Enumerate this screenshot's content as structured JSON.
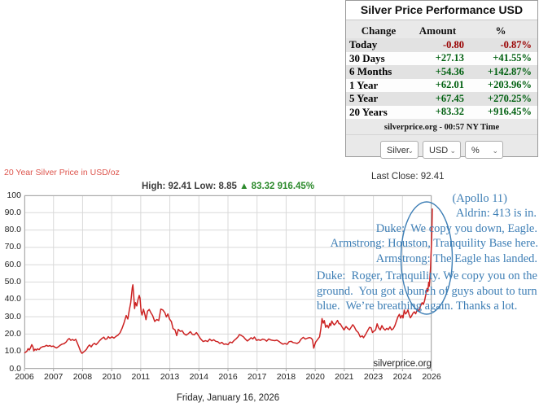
{
  "panel": {
    "title": "Silver Price Performance USD",
    "columns": [
      "Change",
      "Amount",
      "%"
    ],
    "rows": [
      {
        "label": "Today",
        "amount": "-0.80",
        "pct": "-0.87%",
        "negative": true
      },
      {
        "label": "30 Days",
        "amount": "+27.13",
        "pct": "+41.55%",
        "negative": false
      },
      {
        "label": "6 Months",
        "amount": "+54.36",
        "pct": "+142.87%",
        "negative": false
      },
      {
        "label": "1 Year",
        "amount": "+62.01",
        "pct": "+203.96%",
        "negative": false
      },
      {
        "label": "5 Year",
        "amount": "+67.45",
        "pct": "+270.25%",
        "negative": false
      },
      {
        "label": "20 Years",
        "amount": "+83.32",
        "pct": "+916.45%",
        "negative": false
      }
    ],
    "footer": "silverprice.org - 00:57 NY Time",
    "selects": [
      {
        "value": "Silver"
      },
      {
        "value": "USD"
      },
      {
        "value": "%"
      }
    ]
  },
  "chart_header": {
    "title": "20 Year Silver Price in USD/oz",
    "last_close": "Last Close: 92.41",
    "high_low": "High: 92.41 Low: 8.85 ",
    "change": "▲ 83.32 916.45%"
  },
  "annotation": {
    "lines": [
      "(Apollo 11)",
      "Aldrin: 413 is in.",
      "Duke:  We copy you down, Eagle.",
      "Armstrong: Houston, Tranquility Base here.",
      "Armstrong: The Eagle has landed.",
      "Duke:  Roger, Tranquility. We copy you on the",
      "ground.  You got a bunch of guys about to turn",
      "blue.  We’re breathing again. Thanks a lot."
    ]
  },
  "watermark": "silverprice.org",
  "footer_date": "Friday, January 16, 2026",
  "colors": {
    "positive": "#006010",
    "negative": "#990000",
    "line": "#cc2222",
    "annotation": "#3d7eb5",
    "title_red": "#dd544c",
    "change_green": "#2c8a2c",
    "grid": "#d9d9d9",
    "plot_border": "#ababab"
  },
  "chart_data": {
    "type": "line",
    "title": "20 Year Silver Price in USD/oz",
    "xlabel": "",
    "ylabel": "USD/oz",
    "grid": true,
    "x_axis_years": [
      2006,
      2026
    ],
    "ylim": [
      0,
      100
    ],
    "high": 92.41,
    "low": 8.85,
    "last_close": 92.41,
    "x_tick_labels": [
      "2006",
      "2007",
      "2008",
      "2010",
      "2011",
      "2013",
      "2014",
      "2016",
      "2017",
      "2018",
      "2020",
      "2021",
      "2023",
      "2024",
      "2026"
    ],
    "y_tick_labels": [
      "100",
      "90.0",
      "80.0",
      "70.0",
      "60.0",
      "50.0",
      "40.0",
      "30.0",
      "20.0",
      "10.0",
      "0.0"
    ],
    "series": [
      {
        "name": "Silver price USD/oz",
        "points": [
          [
            2006.0,
            9.1
          ],
          [
            2006.06,
            9.6
          ],
          [
            2006.12,
            10.1
          ],
          [
            2006.18,
            11.6
          ],
          [
            2006.24,
            10.8
          ],
          [
            2006.3,
            12.1
          ],
          [
            2006.36,
            13.9
          ],
          [
            2006.42,
            12.6
          ],
          [
            2006.46,
            10.3
          ],
          [
            2006.52,
            11.3
          ],
          [
            2006.58,
            10.7
          ],
          [
            2006.64,
            11.5
          ],
          [
            2006.72,
            11.0
          ],
          [
            2006.8,
            12.2
          ],
          [
            2006.9,
            12.7
          ],
          [
            2007.0,
            12.9
          ],
          [
            2007.08,
            13.5
          ],
          [
            2007.16,
            13.0
          ],
          [
            2007.25,
            13.4
          ],
          [
            2007.33,
            12.8
          ],
          [
            2007.42,
            13.1
          ],
          [
            2007.5,
            12.4
          ],
          [
            2007.58,
            12.0
          ],
          [
            2007.67,
            12.7
          ],
          [
            2007.75,
            13.5
          ],
          [
            2007.85,
            14.2
          ],
          [
            2007.95,
            14.5
          ],
          [
            2008.05,
            15.4
          ],
          [
            2008.13,
            16.8
          ],
          [
            2008.2,
            17.4
          ],
          [
            2008.28,
            16.4
          ],
          [
            2008.36,
            16.9
          ],
          [
            2008.44,
            16.3
          ],
          [
            2008.52,
            17.0
          ],
          [
            2008.6,
            14.8
          ],
          [
            2008.68,
            12.5
          ],
          [
            2008.76,
            10.0
          ],
          [
            2008.83,
            8.85
          ],
          [
            2008.9,
            9.6
          ],
          [
            2008.97,
            10.3
          ],
          [
            2009.05,
            11.2
          ],
          [
            2009.13,
            12.9
          ],
          [
            2009.2,
            13.7
          ],
          [
            2009.28,
            12.6
          ],
          [
            2009.36,
            14.0
          ],
          [
            2009.44,
            14.7
          ],
          [
            2009.52,
            13.9
          ],
          [
            2009.6,
            14.9
          ],
          [
            2009.7,
            16.3
          ],
          [
            2009.8,
            17.4
          ],
          [
            2009.9,
            18.2
          ],
          [
            2009.97,
            17.0
          ],
          [
            2010.05,
            17.2
          ],
          [
            2010.12,
            18.5
          ],
          [
            2010.2,
            17.6
          ],
          [
            2010.3,
            18.4
          ],
          [
            2010.4,
            17.7
          ],
          [
            2010.5,
            18.7
          ],
          [
            2010.6,
            19.4
          ],
          [
            2010.7,
            20.8
          ],
          [
            2010.8,
            23.4
          ],
          [
            2010.9,
            26.7
          ],
          [
            2011.0,
            30.7
          ],
          [
            2011.08,
            28.7
          ],
          [
            2011.15,
            33.8
          ],
          [
            2011.22,
            37.9
          ],
          [
            2011.3,
            46.9
          ],
          [
            2011.33,
            48.4
          ],
          [
            2011.37,
            42.6
          ],
          [
            2011.41,
            34.7
          ],
          [
            2011.46,
            38.1
          ],
          [
            2011.52,
            36.2
          ],
          [
            2011.58,
            39.8
          ],
          [
            2011.64,
            42.3
          ],
          [
            2011.68,
            40.6
          ],
          [
            2011.73,
            33.1
          ],
          [
            2011.78,
            31.0
          ],
          [
            2011.85,
            34.3
          ],
          [
            2011.9,
            32.2
          ],
          [
            2011.97,
            28.3
          ],
          [
            2012.05,
            33.2
          ],
          [
            2012.13,
            34.2
          ],
          [
            2012.2,
            32.6
          ],
          [
            2012.3,
            30.6
          ],
          [
            2012.4,
            27.3
          ],
          [
            2012.5,
            28.4
          ],
          [
            2012.6,
            27.8
          ],
          [
            2012.7,
            34.4
          ],
          [
            2012.8,
            33.9
          ],
          [
            2012.9,
            32.3
          ],
          [
            2012.97,
            29.9
          ],
          [
            2013.05,
            31.6
          ],
          [
            2013.13,
            28.6
          ],
          [
            2013.22,
            27.2
          ],
          [
            2013.3,
            23.2
          ],
          [
            2013.4,
            22.4
          ],
          [
            2013.48,
            19.1
          ],
          [
            2013.56,
            22.7
          ],
          [
            2013.65,
            21.6
          ],
          [
            2013.75,
            21.9
          ],
          [
            2013.85,
            20.1
          ],
          [
            2013.95,
            19.4
          ],
          [
            2014.05,
            20.2
          ],
          [
            2014.15,
            21.4
          ],
          [
            2014.25,
            19.8
          ],
          [
            2014.35,
            19.6
          ],
          [
            2014.45,
            20.9
          ],
          [
            2014.55,
            19.2
          ],
          [
            2014.65,
            17.3
          ],
          [
            2014.78,
            15.7
          ],
          [
            2014.9,
            16.2
          ],
          [
            2015.0,
            15.7
          ],
          [
            2015.1,
            17.1
          ],
          [
            2015.2,
            16.1
          ],
          [
            2015.3,
            16.7
          ],
          [
            2015.4,
            15.8
          ],
          [
            2015.5,
            15.6
          ],
          [
            2015.6,
            14.6
          ],
          [
            2015.7,
            15.2
          ],
          [
            2015.8,
            14.1
          ],
          [
            2015.9,
            14.3
          ],
          [
            2016.0,
            13.9
          ],
          [
            2016.1,
            15.4
          ],
          [
            2016.2,
            15.0
          ],
          [
            2016.3,
            16.3
          ],
          [
            2016.4,
            17.3
          ],
          [
            2016.5,
            18.5
          ],
          [
            2016.56,
            19.7
          ],
          [
            2016.65,
            19.2
          ],
          [
            2016.75,
            18.5
          ],
          [
            2016.85,
            17.2
          ],
          [
            2016.95,
            16.0
          ],
          [
            2017.05,
            16.9
          ],
          [
            2017.13,
            17.9
          ],
          [
            2017.22,
            17.2
          ],
          [
            2017.3,
            18.3
          ],
          [
            2017.4,
            16.4
          ],
          [
            2017.5,
            16.7
          ],
          [
            2017.6,
            16.4
          ],
          [
            2017.7,
            17.1
          ],
          [
            2017.8,
            16.8
          ],
          [
            2017.9,
            15.9
          ],
          [
            2018.0,
            17.2
          ],
          [
            2018.1,
            16.6
          ],
          [
            2018.2,
            16.4
          ],
          [
            2018.3,
            16.2
          ],
          [
            2018.4,
            16.5
          ],
          [
            2018.5,
            15.8
          ],
          [
            2018.6,
            14.9
          ],
          [
            2018.7,
            14.2
          ],
          [
            2018.8,
            14.6
          ],
          [
            2018.9,
            14.1
          ],
          [
            2019.0,
            15.6
          ],
          [
            2019.1,
            15.8
          ],
          [
            2019.2,
            15.1
          ],
          [
            2019.3,
            14.9
          ],
          [
            2019.4,
            14.6
          ],
          [
            2019.5,
            15.4
          ],
          [
            2019.6,
            17.2
          ],
          [
            2019.7,
            18.1
          ],
          [
            2019.8,
            17.1
          ],
          [
            2019.9,
            17.6
          ],
          [
            2020.0,
            18.0
          ],
          [
            2020.08,
            17.7
          ],
          [
            2020.15,
            16.7
          ],
          [
            2020.21,
            11.9
          ],
          [
            2020.3,
            15.2
          ],
          [
            2020.4,
            16.8
          ],
          [
            2020.5,
            18.4
          ],
          [
            2020.56,
            22.8
          ],
          [
            2020.62,
            28.9
          ],
          [
            2020.68,
            26.3
          ],
          [
            2020.73,
            27.8
          ],
          [
            2020.8,
            23.9
          ],
          [
            2020.87,
            25.1
          ],
          [
            2020.94,
            23.6
          ],
          [
            2021.0,
            26.1
          ],
          [
            2021.05,
            24.9
          ],
          [
            2021.1,
            27.5
          ],
          [
            2021.16,
            26.2
          ],
          [
            2021.22,
            25.3
          ],
          [
            2021.3,
            26.3
          ],
          [
            2021.38,
            27.9
          ],
          [
            2021.45,
            26.0
          ],
          [
            2021.52,
            25.8
          ],
          [
            2021.6,
            24.2
          ],
          [
            2021.7,
            22.4
          ],
          [
            2021.8,
            24.3
          ],
          [
            2021.9,
            23.1
          ],
          [
            2021.97,
            22.5
          ],
          [
            2022.05,
            23.9
          ],
          [
            2022.13,
            25.4
          ],
          [
            2022.2,
            24.3
          ],
          [
            2022.3,
            22.0
          ],
          [
            2022.4,
            20.9
          ],
          [
            2022.5,
            18.3
          ],
          [
            2022.6,
            18.9
          ],
          [
            2022.66,
            17.9
          ],
          [
            2022.75,
            19.6
          ],
          [
            2022.85,
            21.7
          ],
          [
            2022.95,
            23.9
          ],
          [
            2023.03,
            23.6
          ],
          [
            2023.1,
            20.9
          ],
          [
            2023.17,
            21.7
          ],
          [
            2023.25,
            22.4
          ],
          [
            2023.33,
            25.9
          ],
          [
            2023.4,
            23.6
          ],
          [
            2023.48,
            22.4
          ],
          [
            2023.56,
            24.9
          ],
          [
            2023.64,
            23.2
          ],
          [
            2023.72,
            22.3
          ],
          [
            2023.8,
            23.3
          ],
          [
            2023.88,
            22.6
          ],
          [
            2023.96,
            24.2
          ],
          [
            2024.04,
            22.4
          ],
          [
            2024.12,
            23.1
          ],
          [
            2024.2,
            24.9
          ],
          [
            2024.28,
            27.6
          ],
          [
            2024.35,
            29.9
          ],
          [
            2024.42,
            31.4
          ],
          [
            2024.48,
            29.2
          ],
          [
            2024.55,
            30.8
          ],
          [
            2024.6,
            29.3
          ],
          [
            2024.66,
            33.8
          ],
          [
            2024.72,
            31.6
          ],
          [
            2024.78,
            32.4
          ],
          [
            2024.84,
            33.9
          ],
          [
            2024.9,
            31.2
          ],
          [
            2024.96,
            29.4
          ],
          [
            2025.02,
            30.4
          ],
          [
            2025.08,
            31.9
          ],
          [
            2025.15,
            32.8
          ],
          [
            2025.22,
            31.7
          ],
          [
            2025.3,
            34.1
          ],
          [
            2025.38,
            33.2
          ],
          [
            2025.46,
            36.2
          ],
          [
            2025.54,
            38.1
          ],
          [
            2025.6,
            37.1
          ],
          [
            2025.66,
            39.3
          ],
          [
            2025.72,
            42.8
          ],
          [
            2025.78,
            46.3
          ],
          [
            2025.82,
            44.6
          ],
          [
            2025.86,
            49.9
          ],
          [
            2025.89,
            47.6
          ],
          [
            2025.92,
            52.5
          ],
          [
            2025.95,
            58.4
          ],
          [
            2025.97,
            65.3
          ],
          [
            2026.0,
            72.5
          ],
          [
            2026.02,
            81.0
          ],
          [
            2026.04,
            92.41
          ]
        ]
      }
    ]
  }
}
